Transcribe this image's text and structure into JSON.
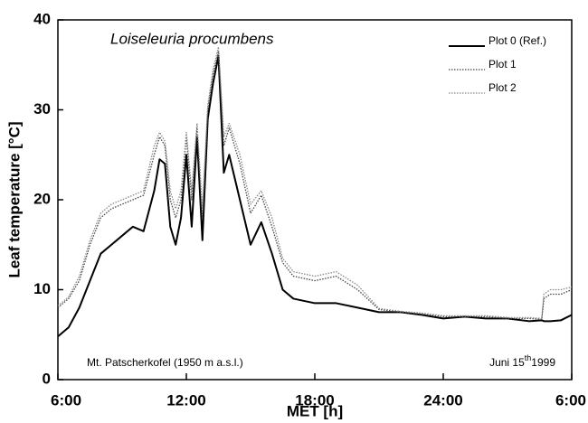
{
  "chart_data": {
    "type": "line",
    "xlabel": "MET [h]",
    "ylabel": "Leaf temperature [°C]",
    "annotations": {
      "species": "Loiseleuria procumbens",
      "site": "Mt. Patscherkofel (1950 m a.s.l.)",
      "date": {
        "day": "Juni 15",
        "suffix": "th",
        "year": "1999"
      }
    },
    "x": [
      6,
      6.5,
      7,
      7.5,
      8,
      8.5,
      9,
      9.5,
      10,
      10.5,
      10.75,
      11,
      11.25,
      11.5,
      11.75,
      12,
      12.25,
      12.5,
      12.75,
      13,
      13.25,
      13.5,
      13.75,
      14,
      14.5,
      15,
      15.5,
      16,
      16.5,
      17,
      18,
      19,
      20,
      21,
      22,
      23,
      24,
      25,
      26,
      27,
      28,
      28.6,
      28.7,
      29,
      29.5,
      30
    ],
    "series": [
      {
        "name": "Plot 0 (Ref.)",
        "color": "#000000",
        "dash": "solid",
        "values": [
          4.8,
          5.8,
          8,
          11,
          14,
          15,
          16,
          17,
          16.5,
          21,
          24.5,
          24,
          17,
          15,
          18,
          25,
          17,
          27,
          15.5,
          29,
          33,
          36,
          23,
          25,
          20,
          15,
          17.5,
          14,
          10,
          9,
          8.5,
          8.5,
          8,
          7.5,
          7.5,
          7.2,
          6.8,
          7,
          6.8,
          6.8,
          6.5,
          6.6,
          6.5,
          6.5,
          6.6,
          7.2
        ]
      },
      {
        "name": "Plot 1",
        "color": "#444444",
        "dash": "dotted",
        "values": [
          8,
          9,
          11,
          15,
          18,
          19,
          19.5,
          20,
          20.5,
          25,
          27,
          26,
          20,
          18,
          20,
          27,
          20,
          28,
          18,
          30,
          34,
          36.5,
          26,
          28,
          24,
          18.5,
          20.5,
          17,
          13,
          11.5,
          11,
          11.5,
          10,
          7.8,
          7.5,
          7.3,
          7,
          7,
          7,
          6.8,
          6.8,
          6.7,
          9,
          9.5,
          9.5,
          10
        ]
      },
      {
        "name": "Plot 2",
        "color": "#888888",
        "dash": "dotted",
        "values": [
          8.2,
          9.2,
          11.5,
          15.5,
          18.5,
          19.5,
          20,
          20.5,
          21,
          26,
          27.5,
          26.5,
          21,
          19,
          21,
          27.5,
          21,
          28.5,
          19,
          30.5,
          34.5,
          37,
          27,
          28.5,
          25,
          19.5,
          21,
          18,
          13.5,
          12,
          11.5,
          12,
          10.5,
          7.9,
          7.6,
          7.4,
          7.1,
          7.1,
          7.1,
          6.9,
          6.9,
          6.8,
          9.5,
          10,
          10,
          10.3
        ]
      }
    ],
    "xlim": [
      6,
      30
    ],
    "xticks": [
      {
        "value": 6,
        "label": "6:00"
      },
      {
        "value": 12,
        "label": "12:00"
      },
      {
        "value": 18,
        "label": "18:00"
      },
      {
        "value": 24,
        "label": "24:00"
      },
      {
        "value": 30,
        "label": "6:00"
      }
    ],
    "ylim": [
      0,
      40
    ],
    "yticks": [
      0,
      10,
      20,
      30,
      40
    ],
    "grid": false,
    "legend": "upper right"
  }
}
